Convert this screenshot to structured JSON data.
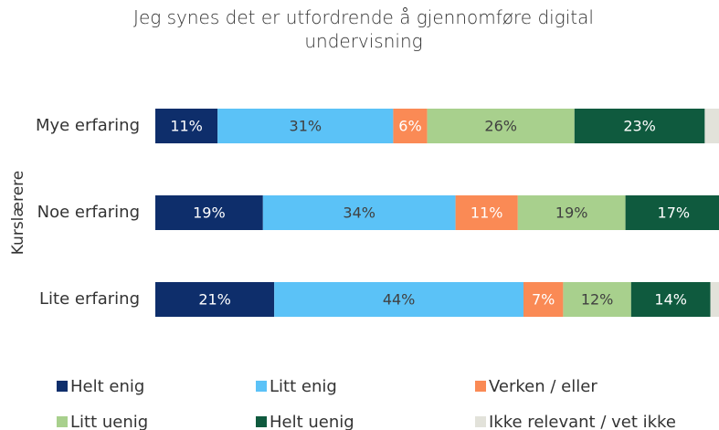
{
  "chart_data": {
    "type": "stacked-bar-horizontal",
    "title": "Jeg synes det er utfordrende å gjennomføre digital undervisning",
    "y_label": "Kurslærere",
    "categories": [
      "Mye erfaring",
      "Noe erfaring",
      "Lite erfaring"
    ],
    "xlim": [
      0,
      100
    ],
    "legend": "bottom",
    "series": [
      {
        "name": "Helt enig",
        "color": "#0e2e6b",
        "label_color": "#ffffff",
        "values": [
          11,
          19,
          21
        ],
        "value_labels": [
          "11%",
          "19%",
          "21%"
        ]
      },
      {
        "name": "Litt enig",
        "color": "#5bc2f7",
        "label_color": "#404040",
        "values": [
          31,
          34,
          44
        ],
        "value_labels": [
          "31%",
          "34%",
          "44%"
        ]
      },
      {
        "name": "Verken / eller",
        "color": "#fa8a55",
        "label_color": "#ffffff",
        "values": [
          6,
          11,
          7
        ],
        "value_labels": [
          "6%",
          "11%",
          "7%"
        ]
      },
      {
        "name": "Litt uenig",
        "color": "#a8d08d",
        "label_color": "#404040",
        "values": [
          26,
          19,
          12
        ],
        "value_labels": [
          "26%",
          "19%",
          "12%"
        ]
      },
      {
        "name": "Helt uenig",
        "color": "#0f5a3e",
        "label_color": "#ffffff",
        "values": [
          23,
          17,
          14
        ],
        "value_labels": [
          "23%",
          "17%",
          "14%"
        ]
      },
      {
        "name": "Ikke relevant / vet ikke",
        "color": "#e2e2da",
        "values": [
          3,
          0,
          2
        ]
      }
    ]
  }
}
